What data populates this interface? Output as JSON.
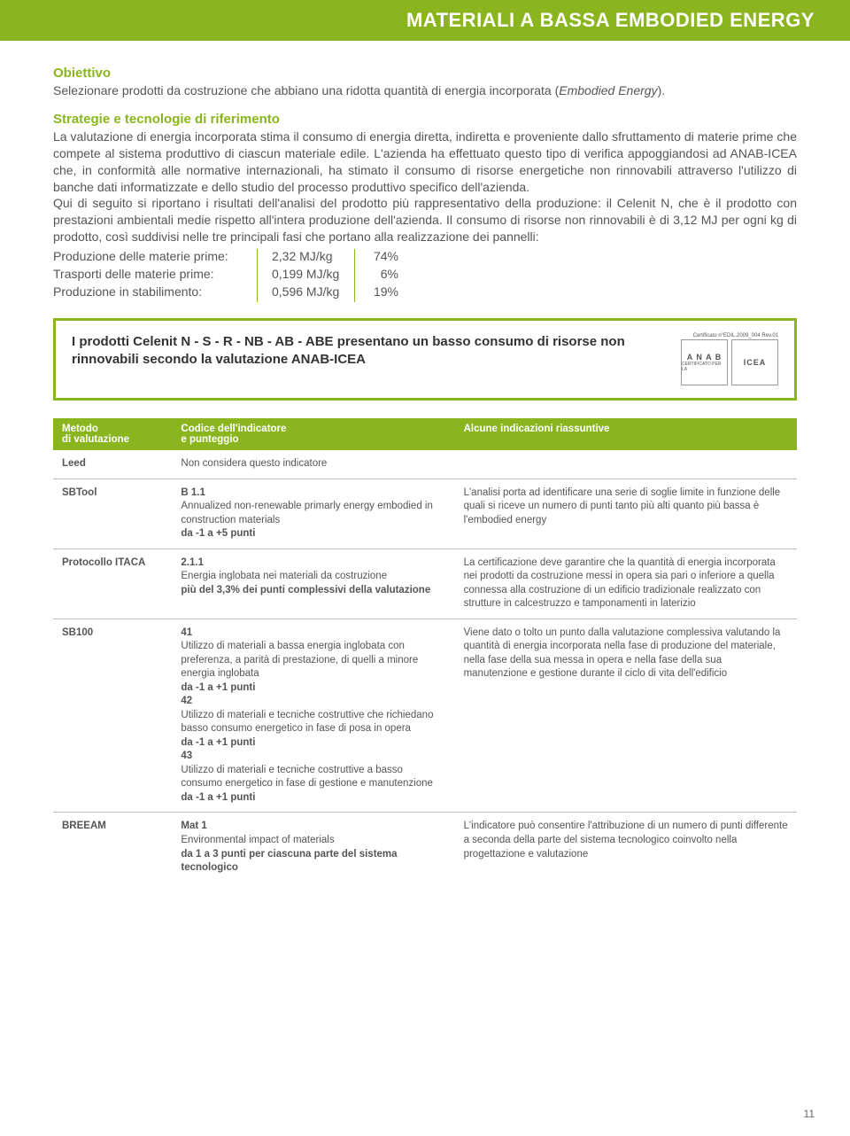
{
  "colors": {
    "accent": "#8ab51e",
    "text": "#555555",
    "heading": "#333333",
    "border": "#bfbfbf",
    "white": "#ffffff"
  },
  "banner": {
    "title": "MATERIALI A BASSA EMBODIED ENERGY"
  },
  "objective": {
    "heading": "Obiettivo",
    "text_a": "Selezionare prodotti da costruzione che abbiano una ridotta quantità di energia incorporata (",
    "text_em": "Embodied Energy",
    "text_b": ")."
  },
  "strategy": {
    "heading": "Strategie e tecnologie di riferimento",
    "body": "La valutazione di energia incorporata stima il consumo di energia diretta, indiretta e proveniente dallo sfruttamento di materie prime che compete al sistema produttivo di ciascun materiale edile. L'azienda ha effettuato questo tipo di verifica appoggiandosi ad ANAB-ICEA che, in conformità alle normative internazionali, ha stimato il consumo di risorse energetiche non rinnovabili attraverso l'utilizzo di banche dati informatizzate e dello studio del processo produttivo specifico dell'azienda.\nQui di seguito si riportano i risultati dell'analisi del prodotto più rappresentativo della produzione: il Celenit N, che è il prodotto con prestazioni ambientali medie rispetto all'intera produzione dell'azienda. Il consumo di risorse non rinnovabili è di 3,12 MJ per ogni kg di prodotto, così suddivisi nelle tre principali fasi che portano alla realizzazione dei pannelli:"
  },
  "phases": [
    {
      "label": "Produzione delle materie prime:",
      "energy": "2,32  MJ/kg",
      "pct": "74%"
    },
    {
      "label": "Trasporti delle materie prime:",
      "energy": "0,199 MJ/kg",
      "pct": "6%"
    },
    {
      "label": "Produzione in stabilimento:",
      "energy": "0,596 MJ/kg",
      "pct": "19%"
    }
  ],
  "callout": {
    "text": "I prodotti Celenit N - S - R - NB - AB - ABE presentano un basso consumo di risorse non rinnovabili secondo la valutazione ANAB-ICEA",
    "cert": "Certificato n°EDIL.2009_004  Rev.01",
    "logo1_top": "A N A B",
    "logo1_bottom": "CERTIFICATO PER LA",
    "logo2": "ICEA"
  },
  "table": {
    "headers": {
      "method": "Metodo\ndi valutazione",
      "code": "Codice dell'indicatore\ne punteggio",
      "notes": "Alcune indicazioni riassuntive"
    },
    "rows": [
      {
        "method": "Leed",
        "code_lines": [
          {
            "t": "Non considera questo indicatore",
            "b": false
          }
        ],
        "notes": ""
      },
      {
        "method": "SBTool",
        "code_lines": [
          {
            "t": "B 1.1",
            "b": true
          },
          {
            "t": "Annualized non-renewable primarly energy embodied in construction materials",
            "b": false
          },
          {
            "t": "da -1 a +5 punti",
            "b": true
          }
        ],
        "notes": "L'analisi porta ad identificare una serie di soglie limite in funzione delle quali si riceve un numero di punti tanto più alti quanto più bassa è l'embodied energy"
      },
      {
        "method": "Protocollo ITACA",
        "code_lines": [
          {
            "t": "2.1.1",
            "b": true
          },
          {
            "t": "Energia inglobata nei materiali da costruzione",
            "b": false
          },
          {
            "t": "più del 3,3% dei punti complessivi della valutazione",
            "b": true
          }
        ],
        "notes": "La certificazione deve garantire che la quantità di energia incorporata nei prodotti da costruzione messi in opera sia pari o inferiore a quella connessa alla costruzione di un edificio tradizionale realizzato con strutture in calcestruzzo e tamponamenti in laterizio"
      },
      {
        "method": "SB100",
        "code_lines": [
          {
            "t": "41",
            "b": true
          },
          {
            "t": "Utilizzo di materiali a bassa energia inglobata con preferenza, a parità di prestazione, di quelli a minore energia inglobata",
            "b": false
          },
          {
            "t": "da -1 a +1 punti",
            "b": true
          },
          {
            "t": "42",
            "b": true
          },
          {
            "t": "Utilizzo di materiali e tecniche costruttive che richiedano basso consumo energetico in fase di posa in opera",
            "b": false
          },
          {
            "t": "da -1 a +1 punti",
            "b": true
          },
          {
            "t": "43",
            "b": true
          },
          {
            "t": "Utilizzo di materiali e tecniche costruttive a basso consumo energetico in fase di gestione e manutenzione",
            "b": false
          },
          {
            "t": "da -1 a +1 punti",
            "b": true
          }
        ],
        "notes": "Viene dato o tolto un punto dalla valutazione complessiva valutando la quantità di energia incorporata nella fase di produzione del materiale, nella fase della sua messa in opera e nella fase della sua manutenzione e gestione durante il ciclo di vita dell'edificio"
      },
      {
        "method": "BREEAM",
        "code_lines": [
          {
            "t": "Mat 1",
            "b": true
          },
          {
            "t": "Environmental impact of materials",
            "b": false
          },
          {
            "t": "da 1 a 3 punti per ciascuna parte del sistema tecnologico",
            "b": true
          }
        ],
        "notes": "L'indicatore può consentire l'attribuzione di un numero di punti differente a seconda della parte del sistema tecnologico coinvolto nella progettazione e valutazione"
      }
    ]
  },
  "page_number": "11"
}
